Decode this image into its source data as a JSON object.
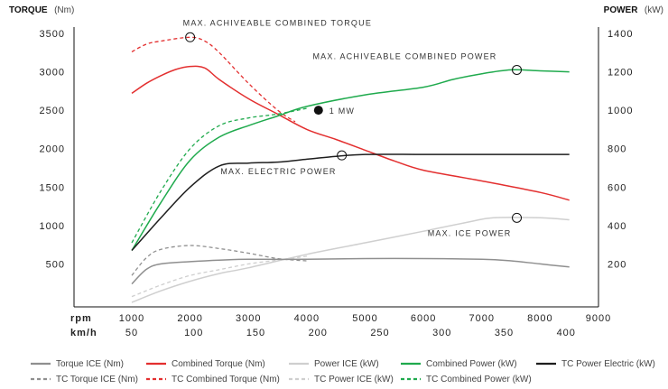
{
  "chart_data": {
    "type": "line",
    "left_axis": {
      "title_bold": "TORQUE",
      "title_unit": "(Nm)",
      "ticks": [
        500,
        1000,
        1500,
        2000,
        2500,
        3000,
        3500
      ],
      "range": [
        0,
        3500
      ]
    },
    "right_axis": {
      "title_bold": "POWER",
      "title_unit": "(kW)",
      "ticks": [
        200,
        400,
        600,
        800,
        1000,
        1200,
        1400
      ],
      "range": [
        0,
        1400
      ]
    },
    "x_axis": {
      "rpm_label": "rpm",
      "kmh_label": "km/h",
      "rpm_ticks": [
        1000,
        2000,
        3000,
        4000,
        5000,
        6000,
        7000,
        8000,
        9000
      ],
      "kmh_ticks": [
        50,
        100,
        150,
        200,
        250,
        300,
        350,
        400
      ],
      "range": [
        1000,
        9000
      ]
    },
    "series": [
      {
        "name": "Torque ICE (Nm)",
        "axis": "left",
        "color": "#8f8f8f",
        "dash": "solid",
        "x": [
          1000,
          1250,
          1500,
          2000,
          2500,
          3000,
          4000,
          5000,
          6000,
          7000,
          7500,
          8000,
          8500
        ],
        "y": [
          240,
          430,
          500,
          530,
          550,
          560,
          560,
          570,
          570,
          560,
          540,
          500,
          460
        ]
      },
      {
        "name": "TC Torque ICE (Nm)",
        "axis": "left",
        "color": "#8f8f8f",
        "dash": "dashed",
        "x": [
          1000,
          1250,
          1500,
          2000,
          2500,
          3000,
          3500,
          4000
        ],
        "y": [
          350,
          580,
          690,
          740,
          700,
          640,
          570,
          540
        ]
      },
      {
        "name": "Combined Torque (Nm)",
        "axis": "left",
        "color": "#e32f2f",
        "dash": "solid",
        "x": [
          1000,
          1250,
          1500,
          1750,
          2000,
          2250,
          2500,
          3000,
          3500,
          4000,
          4500,
          5000,
          5500,
          6000,
          7000,
          8000,
          8500
        ],
        "y": [
          2720,
          2850,
          2950,
          3030,
          3070,
          3050,
          2900,
          2650,
          2450,
          2250,
          2120,
          1980,
          1840,
          1720,
          1580,
          1430,
          1330
        ]
      },
      {
        "name": "TC Combined Torque (Nm)",
        "axis": "left",
        "color": "#e32f2f",
        "dash": "dashed",
        "x": [
          1000,
          1250,
          1500,
          2000,
          2250,
          2500,
          3000,
          3500,
          3800
        ],
        "y": [
          3260,
          3360,
          3400,
          3450,
          3400,
          3250,
          2850,
          2500,
          2350
        ]
      },
      {
        "name": "Power ICE (kW)",
        "axis": "right",
        "color": "#cfcfcf",
        "dash": "solid",
        "x": [
          1000,
          1500,
          2000,
          2500,
          3000,
          4000,
          5000,
          6000,
          6800,
          7200,
          8000,
          8500
        ],
        "y": [
          0,
          60,
          110,
          150,
          180,
          250,
          310,
          370,
          420,
          440,
          440,
          430
        ]
      },
      {
        "name": "TC Power ICE (kW)",
        "axis": "right",
        "color": "#cfcfcf",
        "dash": "dashed",
        "x": [
          1000,
          1500,
          2000,
          2500,
          3000,
          3500,
          4000
        ],
        "y": [
          30,
          90,
          140,
          170,
          200,
          220,
          240
        ]
      },
      {
        "name": "Combined Power (kW)",
        "axis": "right",
        "color": "#1faa4d",
        "dash": "solid",
        "x": [
          1000,
          1500,
          2000,
          2500,
          3000,
          3500,
          4000,
          5000,
          6000,
          6500,
          7000,
          7500,
          8000,
          8500
        ],
        "y": [
          270,
          520,
          740,
          860,
          920,
          970,
          1020,
          1080,
          1120,
          1160,
          1190,
          1210,
          1205,
          1200
        ]
      },
      {
        "name": "TC Combined Power (kW)",
        "axis": "right",
        "color": "#1faa4d",
        "dash": "dashed",
        "x": [
          1000,
          1500,
          2000,
          2500,
          3000,
          3500,
          4000
        ],
        "y": [
          310,
          580,
          800,
          920,
          960,
          980,
          1010
        ]
      },
      {
        "name": "TC Power Electric (kW)",
        "axis": "right",
        "color": "#1e1e1e",
        "dash": "solid",
        "x": [
          1000,
          1500,
          2000,
          2500,
          3000,
          3500,
          4000,
          4500,
          5000,
          6000,
          7000,
          8000,
          8500
        ],
        "y": [
          270,
          440,
          600,
          710,
          725,
          730,
          745,
          760,
          770,
          770,
          770,
          770,
          770
        ]
      }
    ],
    "annotations": [
      {
        "label": "MAX. ACHIVEABLE COMBINED TORQUE",
        "axis": "left",
        "x": 2000,
        "y": 3450,
        "marker": "open"
      },
      {
        "label": "MAX. ACHIVEABLE COMBINED POWER",
        "axis": "right",
        "x": 7600,
        "y": 1210,
        "marker": "open"
      },
      {
        "label": "1 MW",
        "axis": "right",
        "x": 4200,
        "y": 1000,
        "marker": "filled"
      },
      {
        "label": "MAX. ELECTRIC POWER",
        "axis": "right",
        "x": 4600,
        "y": 765,
        "marker": "open"
      },
      {
        "label": "MAX. ICE POWER",
        "axis": "right",
        "x": 7600,
        "y": 440,
        "marker": "open"
      }
    ],
    "legend_placement": "bottom"
  }
}
